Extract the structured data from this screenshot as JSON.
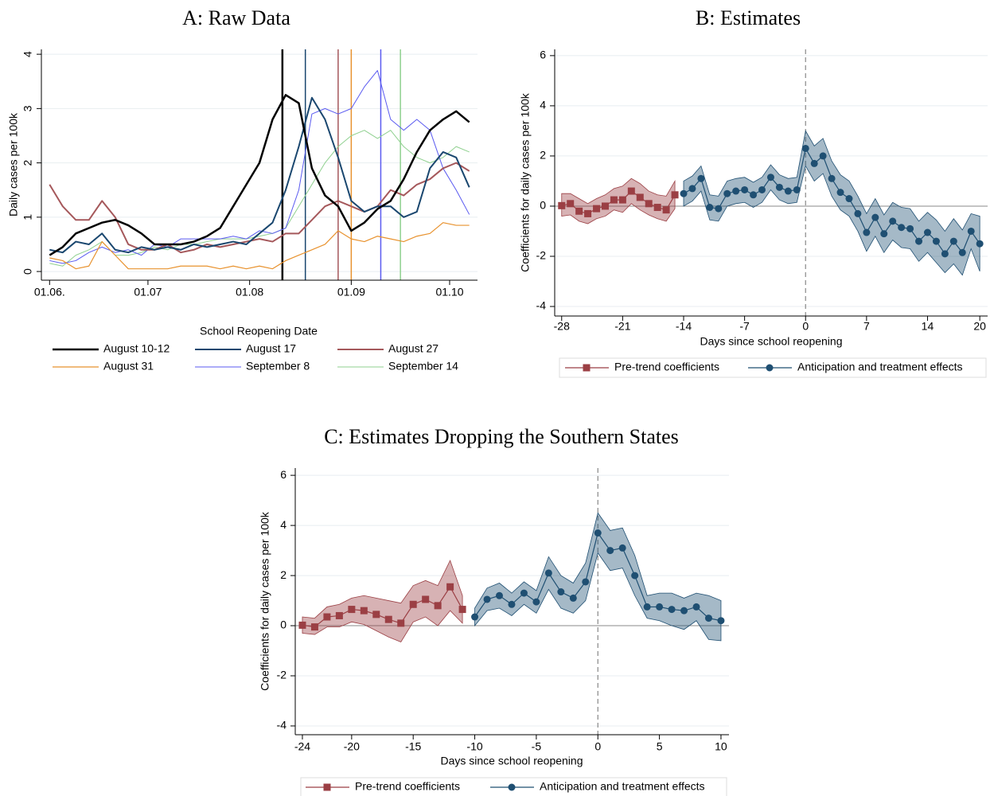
{
  "chart_data": [
    {
      "type": "line",
      "title": "A: Raw Data",
      "ylabel": "Daily cases per 100k",
      "legend_title": "School Reopening Date",
      "x": [
        0,
        4,
        8,
        12,
        16,
        20,
        24,
        28,
        32,
        36,
        40,
        44,
        48,
        52,
        56,
        60,
        64,
        68,
        72,
        76,
        80,
        84,
        88,
        92,
        96,
        100,
        104,
        108,
        112,
        116,
        120,
        124,
        128
      ],
      "xlim": [
        -2.5,
        130.5
      ],
      "xticks": [
        {
          "value": 0,
          "label": "01.06."
        },
        {
          "value": 30,
          "label": "01.07"
        },
        {
          "value": 61,
          "label": "01.08"
        },
        {
          "value": 92,
          "label": "01.09"
        },
        {
          "value": 122,
          "label": "01.10"
        }
      ],
      "ylim": [
        -0.16,
        4.09
      ],
      "yticks": [
        0,
        1,
        2,
        3,
        4
      ],
      "grid": true,
      "series": [
        {
          "name": "August 10-12",
          "color": "#000000",
          "width": 2.5,
          "reopening": 71,
          "values": [
            0.3,
            0.45,
            0.7,
            0.8,
            0.9,
            0.95,
            0.85,
            0.7,
            0.5,
            0.5,
            0.5,
            0.55,
            0.65,
            0.8,
            1.2,
            1.6,
            2.0,
            2.8,
            3.25,
            3.1,
            1.9,
            1.4,
            1.2,
            0.75,
            0.9,
            1.15,
            1.3,
            1.7,
            2.2,
            2.6,
            2.8,
            2.95,
            2.75
          ]
        },
        {
          "name": "August 17",
          "color": "#1a476f",
          "width": 2,
          "reopening": 78,
          "values": [
            0.4,
            0.35,
            0.55,
            0.5,
            0.7,
            0.4,
            0.35,
            0.45,
            0.4,
            0.45,
            0.4,
            0.5,
            0.45,
            0.5,
            0.55,
            0.5,
            0.7,
            0.9,
            1.5,
            2.3,
            3.2,
            2.8,
            2.1,
            1.3,
            1.1,
            1.2,
            1.2,
            1.0,
            1.1,
            1.9,
            2.2,
            2.1,
            1.55
          ]
        },
        {
          "name": "August 27",
          "color": "#a5585b",
          "width": 2,
          "reopening": 88,
          "values": [
            1.6,
            1.2,
            0.95,
            0.95,
            1.3,
            1.0,
            0.5,
            0.4,
            0.4,
            0.5,
            0.35,
            0.4,
            0.5,
            0.45,
            0.5,
            0.55,
            0.6,
            0.55,
            0.7,
            0.7,
            0.95,
            1.2,
            1.3,
            1.2,
            1.1,
            1.2,
            1.5,
            1.4,
            1.6,
            1.7,
            1.9,
            2.0,
            1.85
          ]
        },
        {
          "name": "August 31",
          "color": "#e8922e",
          "width": 1.2,
          "reopening": 92,
          "values": [
            0.25,
            0.2,
            0.05,
            0.1,
            0.55,
            0.3,
            0.05,
            0.05,
            0.05,
            0.05,
            0.1,
            0.1,
            0.1,
            0.05,
            0.1,
            0.05,
            0.1,
            0.05,
            0.2,
            0.3,
            0.4,
            0.5,
            0.75,
            0.6,
            0.55,
            0.65,
            0.6,
            0.55,
            0.65,
            0.7,
            0.9,
            0.85,
            0.85
          ]
        },
        {
          "name": "September 8",
          "color": "#5a5af0",
          "width": 1,
          "reopening": 101,
          "values": [
            0.2,
            0.15,
            0.2,
            0.35,
            0.45,
            0.35,
            0.4,
            0.3,
            0.5,
            0.45,
            0.6,
            0.6,
            0.6,
            0.6,
            0.65,
            0.6,
            0.75,
            0.7,
            0.8,
            1.5,
            2.9,
            3.0,
            2.9,
            3.0,
            3.4,
            3.7,
            2.8,
            2.6,
            2.8,
            2.6,
            1.9,
            1.5,
            1.05
          ]
        },
        {
          "name": "September 14",
          "color": "#8fd08f",
          "width": 1,
          "reopening": 107,
          "values": [
            0.15,
            0.1,
            0.3,
            0.4,
            0.55,
            0.3,
            0.3,
            0.35,
            0.45,
            0.4,
            0.5,
            0.5,
            0.55,
            0.6,
            0.6,
            0.6,
            0.65,
            0.7,
            0.8,
            1.2,
            1.6,
            2.0,
            2.3,
            2.5,
            2.6,
            2.45,
            2.6,
            2.3,
            2.1,
            2.0,
            2.1,
            2.3,
            2.2
          ]
        }
      ]
    },
    {
      "type": "band",
      "title": "B: Estimates",
      "xlabel": "Days since school reopening",
      "ylabel": "Coefficients for daily cases per 100k",
      "xlim": [
        -28.8,
        20.9
      ],
      "xticks": [
        -28,
        -21,
        -14,
        -7,
        0,
        7,
        14,
        20
      ],
      "ylim": [
        -4.38,
        6.25
      ],
      "yticks": [
        -4,
        -2,
        0,
        2,
        4,
        6
      ],
      "grid": true,
      "vline": 0,
      "hline": 0,
      "series": [
        {
          "name": "Pre-trend coefficients",
          "color": "#9b3f44",
          "marker": "square",
          "x": [
            -28,
            -27,
            -26,
            -25,
            -24,
            -23,
            -22,
            -21,
            -20,
            -19,
            -18,
            -17,
            -16,
            -15
          ],
          "values": [
            0.02,
            0.1,
            -0.2,
            -0.3,
            -0.1,
            0.0,
            0.25,
            0.25,
            0.6,
            0.35,
            0.1,
            -0.05,
            -0.15,
            0.45
          ],
          "upper": [
            0.5,
            0.5,
            0.3,
            0.1,
            0.3,
            0.45,
            0.7,
            0.8,
            1.1,
            0.9,
            0.6,
            0.45,
            0.4,
            1.0
          ],
          "lower": [
            -0.4,
            -0.35,
            -0.6,
            -0.7,
            -0.5,
            -0.4,
            -0.15,
            -0.25,
            0.1,
            -0.15,
            -0.35,
            -0.5,
            -0.6,
            -0.1
          ]
        },
        {
          "name": "Anticipation and treatment effects",
          "color": "#1f4f72",
          "marker": "circle",
          "x": [
            -14,
            -13,
            -12,
            -11,
            -10,
            -9,
            -8,
            -7,
            -6,
            -5,
            -4,
            -3,
            -2,
            -1,
            0,
            1,
            2,
            3,
            4,
            5,
            6,
            7,
            8,
            9,
            10,
            11,
            12,
            13,
            14,
            15,
            16,
            17,
            18,
            19,
            20
          ],
          "values": [
            0.5,
            0.7,
            1.1,
            -0.05,
            -0.1,
            0.5,
            0.6,
            0.65,
            0.45,
            0.65,
            1.15,
            0.75,
            0.6,
            0.65,
            2.3,
            1.7,
            2.0,
            1.1,
            0.55,
            0.3,
            -0.3,
            -1.05,
            -0.45,
            -1.1,
            -0.6,
            -0.85,
            -0.9,
            -1.4,
            -1.05,
            -1.4,
            -1.9,
            -1.4,
            -1.85,
            -1.0,
            -1.5
          ],
          "upper": [
            1.0,
            1.2,
            1.6,
            0.45,
            0.4,
            1.0,
            1.1,
            1.15,
            0.95,
            1.15,
            1.65,
            1.25,
            1.1,
            1.15,
            3.0,
            2.4,
            2.7,
            1.8,
            1.25,
            1.0,
            0.4,
            -0.3,
            0.3,
            -0.35,
            0.15,
            -0.05,
            -0.1,
            -0.6,
            -0.25,
            -0.55,
            -1.0,
            -0.5,
            -0.95,
            -0.3,
            -0.4
          ],
          "lower": [
            0.0,
            0.2,
            0.6,
            -0.55,
            -0.6,
            0.0,
            0.1,
            0.15,
            -0.05,
            0.15,
            0.65,
            0.25,
            0.1,
            0.15,
            1.6,
            1.0,
            1.3,
            0.4,
            -0.15,
            -0.4,
            -1.0,
            -1.8,
            -1.2,
            -1.85,
            -1.35,
            -1.65,
            -1.7,
            -2.2,
            -1.85,
            -2.25,
            -2.65,
            -2.3,
            -2.75,
            -1.7,
            -2.6
          ]
        }
      ]
    },
    {
      "type": "band",
      "title": "C: Estimates Dropping the Southern States",
      "xlabel": "Days since school reopening",
      "ylabel": "Coefficients for daily cases per 100k",
      "xlim": [
        -24.58,
        10.65
      ],
      "xticks": [
        -24,
        -20,
        -15,
        -10,
        -5,
        0,
        5,
        10
      ],
      "ylim": [
        -4.35,
        6.29
      ],
      "yticks": [
        -4,
        -2,
        0,
        2,
        4,
        6
      ],
      "grid": true,
      "vline": 0,
      "hline": 0,
      "series": [
        {
          "name": "Pre-trend coefficients",
          "color": "#9b3f44",
          "marker": "square",
          "x": [
            -24,
            -23,
            -22,
            -21,
            -20,
            -19,
            -18,
            -17,
            -16,
            -15,
            -14,
            -13,
            -12,
            -11
          ],
          "values": [
            0.02,
            -0.05,
            0.35,
            0.4,
            0.65,
            0.6,
            0.45,
            0.25,
            0.1,
            0.85,
            1.05,
            0.8,
            1.55,
            0.65
          ],
          "upper": [
            0.35,
            0.3,
            0.75,
            0.85,
            1.1,
            1.2,
            1.1,
            1.0,
            0.9,
            1.6,
            1.8,
            1.6,
            2.6,
            1.2
          ],
          "lower": [
            -0.3,
            -0.35,
            -0.05,
            -0.05,
            0.15,
            0.05,
            -0.2,
            -0.45,
            -0.65,
            0.15,
            0.35,
            0.0,
            0.6,
            0.1
          ]
        },
        {
          "name": "Anticipation and treatment effects",
          "color": "#1f4f72",
          "marker": "circle",
          "x": [
            -10,
            -9,
            -8,
            -7,
            -6,
            -5,
            -4,
            -3,
            -2,
            -1,
            0,
            1,
            2,
            3,
            4,
            5,
            6,
            7,
            8,
            9,
            10
          ],
          "values": [
            0.35,
            1.05,
            1.2,
            0.85,
            1.3,
            0.95,
            2.1,
            1.35,
            1.1,
            1.75,
            3.7,
            3.0,
            3.1,
            2.0,
            0.75,
            0.75,
            0.65,
            0.6,
            0.75,
            0.3,
            0.2
          ],
          "upper": [
            0.7,
            1.5,
            1.7,
            1.3,
            1.75,
            1.4,
            2.75,
            2.0,
            1.7,
            2.5,
            4.5,
            3.8,
            3.9,
            2.8,
            1.2,
            1.3,
            1.3,
            1.1,
            1.3,
            1.2,
            1.0
          ],
          "lower": [
            0.0,
            0.6,
            0.7,
            0.4,
            0.85,
            0.5,
            1.45,
            0.7,
            0.5,
            1.0,
            2.9,
            2.2,
            2.3,
            1.2,
            0.3,
            0.2,
            0.0,
            -0.15,
            0.2,
            -0.55,
            -0.6
          ]
        }
      ]
    }
  ]
}
